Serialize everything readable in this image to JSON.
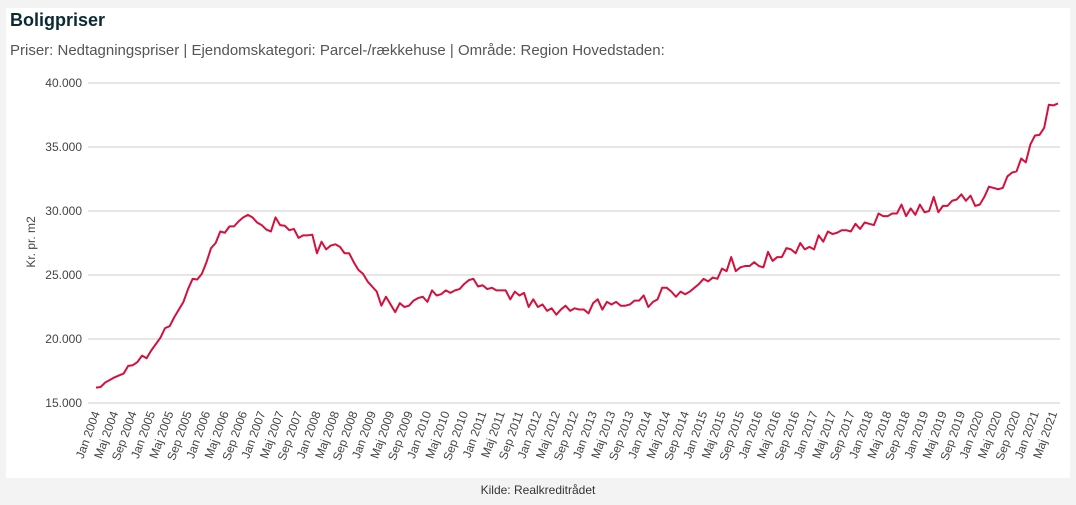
{
  "header": {
    "title": "Boligpriser",
    "subtitle": "Priser: Nedtagningspriser | Ejendomskategori: Parcel-/rækkehuse | Område: Region Hovedstaden:"
  },
  "footer": {
    "source": "Kilde: Realkreditrådet"
  },
  "colors": {
    "line": "#d6103c",
    "grid": "#cccccc",
    "background": "#ffffff"
  },
  "chart_data": {
    "type": "line",
    "title": "Boligpriser",
    "ylabel": "Kr. pr. m2",
    "xlabel": "",
    "ylim": [
      15000,
      40000
    ],
    "y_ticks": [
      {
        "value": 15000,
        "label": "15.000"
      },
      {
        "value": 20000,
        "label": "20.000"
      },
      {
        "value": 25000,
        "label": "25.000"
      },
      {
        "value": 30000,
        "label": "30.000"
      },
      {
        "value": 35000,
        "label": "35.000"
      },
      {
        "value": 40000,
        "label": "40.000"
      }
    ],
    "x_tick_labels": [
      "Jan 2004",
      "Maj 2004",
      "Sep 2004",
      "Jan 2005",
      "Maj 2005",
      "Sep 2005",
      "Jan 2006",
      "Maj 2006",
      "Sep 2006",
      "Jan 2007",
      "Maj 2007",
      "Sep 2007",
      "Jan 2008",
      "Maj 2008",
      "Sep 2008",
      "Jan 2009",
      "Maj 2009",
      "Sep 2009",
      "Jan 2010",
      "Maj 2010",
      "Sep 2010",
      "Jan 2011",
      "Maj 2011",
      "Sep 2011",
      "Jan 2012",
      "Maj 2012",
      "Sep 2012",
      "Jan 2013",
      "Maj 2013",
      "Sep 2013",
      "Jan 2014",
      "Maj 2014",
      "Sep 2014",
      "Jan 2015",
      "Maj 2015",
      "Sep 2015",
      "Jan 2016",
      "Maj 2016",
      "Sep 2016",
      "Jan 2017",
      "Maj 2017",
      "Sep 2017",
      "Jan 2018",
      "Maj 2018",
      "Sep 2018",
      "Jan 2019",
      "Maj 2019",
      "Sep 2019",
      "Jan 2020",
      "Maj 2020",
      "Sep 2020",
      "Jan 2021",
      "Maj 2021"
    ],
    "grid": true,
    "legend": "none",
    "series": [
      {
        "values": [
          16200,
          16250,
          16600,
          16800,
          17000,
          17150,
          17300,
          17900,
          17950,
          18200,
          18700,
          18500,
          19100,
          19600,
          20100,
          20850,
          21000,
          21700,
          22300,
          22900,
          23900,
          24700,
          24650,
          25100,
          26000,
          27100,
          27500,
          28400,
          28300,
          28800,
          28800,
          29200,
          29500,
          29700,
          29500,
          29100,
          28900,
          28550,
          28400,
          29500,
          28900,
          28850,
          28500,
          28600,
          27900,
          28100,
          28100,
          28150,
          26700,
          27600,
          27000,
          27300,
          27400,
          27200,
          26700,
          26700,
          26000,
          25400,
          25100,
          24500,
          24100,
          23700,
          22600,
          23300,
          22700,
          22100,
          22800,
          22500,
          22600,
          23000,
          23200,
          23300,
          22900,
          23800,
          23400,
          23500,
          23800,
          23600,
          23800,
          23900,
          24300,
          24600,
          24700,
          24100,
          24200,
          23900,
          24000,
          23800,
          23800,
          23800,
          23100,
          23700,
          23400,
          23600,
          22500,
          23100,
          22500,
          22700,
          22200,
          22400,
          21900,
          22300,
          22600,
          22200,
          22400,
          22300,
          22300,
          22000,
          22800,
          23100,
          22300,
          22900,
          22700,
          22900,
          22600,
          22600,
          22700,
          23000,
          23000,
          23400,
          22500,
          22900,
          23100,
          24000,
          24000,
          23700,
          23300,
          23700,
          23500,
          23700,
          24000,
          24300,
          24700,
          24500,
          24800,
          24700,
          25500,
          25300,
          26400,
          25300,
          25600,
          25700,
          25700,
          26000,
          25700,
          25600,
          26800,
          26100,
          26400,
          26400,
          27100,
          27000,
          26700,
          27500,
          27000,
          27200,
          27000,
          28100,
          27600,
          28400,
          28200,
          28300,
          28500,
          28500,
          28400,
          29000,
          28600,
          29100,
          29000,
          28900,
          29800,
          29600,
          29600,
          29800,
          29800,
          30500,
          29600,
          30200,
          29700,
          30500,
          29900,
          30000,
          31100,
          29900,
          30400,
          30400,
          30800,
          30900,
          31300,
          30800,
          31200,
          30400,
          30500,
          31100,
          31900,
          31800,
          31700,
          31800,
          32700,
          33000,
          33100,
          34100,
          33800,
          35200,
          35900,
          35950,
          36500,
          38300,
          38250,
          38400
        ]
      }
    ]
  }
}
